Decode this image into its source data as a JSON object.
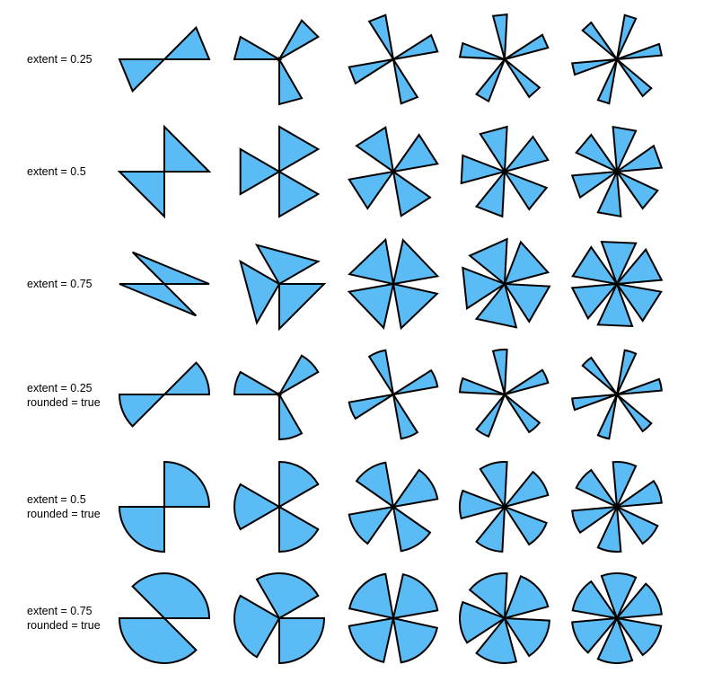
{
  "colors": {
    "blade_fill": "#5bbbf5",
    "stroke": "#000000"
  },
  "columns": [
    {
      "blades": 2,
      "phase": 0
    },
    {
      "blades": 3,
      "phase": 30
    },
    {
      "blades": 4,
      "phase": 10
    },
    {
      "blades": 5,
      "phase": 15
    },
    {
      "blades": 6,
      "phase": 5
    }
  ],
  "rows": [
    {
      "label": "extent = 0.25",
      "extent": 0.25,
      "rounded": false
    },
    {
      "label": "extent = 0.5",
      "extent": 0.5,
      "rounded": false
    },
    {
      "label": "extent = 0.75",
      "extent": 0.75,
      "rounded": false
    },
    {
      "label": "extent = 0.25\nrounded = true",
      "extent": 0.25,
      "rounded": true
    },
    {
      "label": "extent = 0.5\nrounded = true",
      "extent": 0.5,
      "rounded": true
    },
    {
      "label": "extent = 0.75\nrounded = true",
      "extent": 0.75,
      "rounded": true
    }
  ]
}
